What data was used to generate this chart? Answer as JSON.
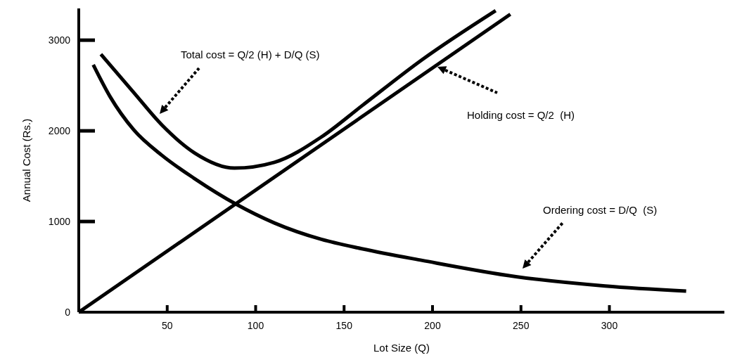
{
  "chart_data": {
    "type": "line",
    "xlabel": "Lot Size (Q)",
    "ylabel": "Annual Cost (Rs.)",
    "xlim": [
      0,
      365
    ],
    "ylim": [
      0,
      3350
    ],
    "xticks": [
      50,
      100,
      150,
      200,
      250,
      300
    ],
    "yticks": [
      0,
      1000,
      2000,
      3000
    ],
    "marker": "none",
    "line_style": "solid",
    "series": [
      {
        "color": "#000000",
        "x": [
          0,
          244
        ],
        "values": [
          0,
          3286
        ]
      },
      {
        "color": "#000000",
        "x": [
          8.2,
          17.8,
          31,
          47,
          65.5,
          88.7,
          110.6,
          137.2,
          160,
          194.2,
          247.2,
          297.6,
          343.4
        ],
        "values": [
          2729,
          2374,
          2013,
          1730,
          1473,
          1194,
          984,
          803,
          700,
          571,
          392,
          289,
          232
        ]
      },
      {
        "color": "#000000",
        "x": [
          12.5,
          31,
          47,
          65.5,
          88,
          110.6,
          137.2,
          160,
          194.2,
          235.7
        ],
        "values": [
          2845,
          2425,
          2065,
          1756,
          1589,
          1653,
          1933,
          2275,
          2786,
          3326
        ]
      }
    ],
    "annotations": [
      "Total cost = Q/2 (H) + D/Q (S)",
      "Holding cost = Q/2  (H)",
      "Ordering cost = D/Q  (S)"
    ]
  }
}
